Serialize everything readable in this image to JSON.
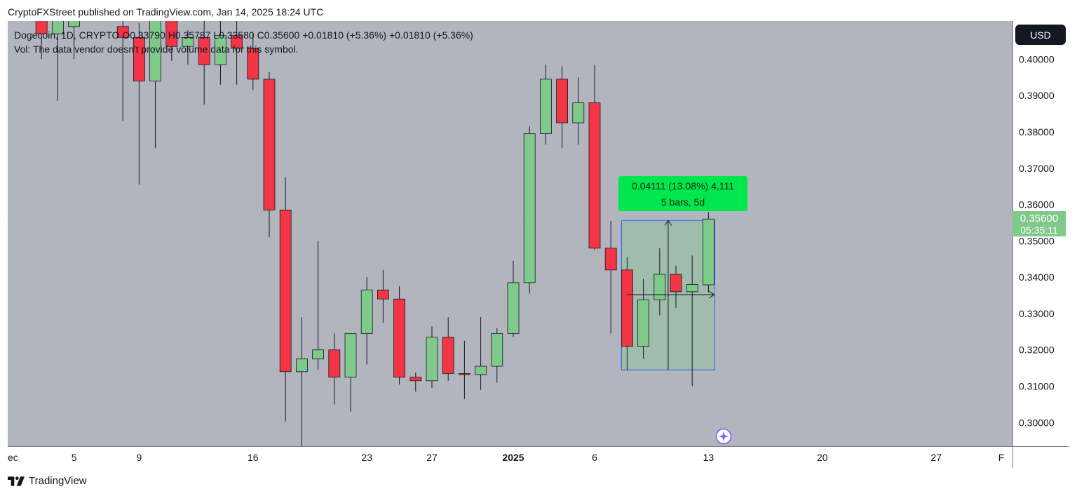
{
  "header": {
    "publisher_line": "CryptoFXStreet published on TradingView.com, Jan 14, 2025 18:24 UTC"
  },
  "legend": {
    "line1": "Dogecoin, 1D, CRYPTO  O0.33790  H0.35787  L0.33580  C0.35600  +0.01810 (+5.36%)  +0.01810 (+5.36%)",
    "line2": "Vol: The data vendor doesn't provide volume data for this symbol."
  },
  "currency_button": "USD",
  "measure": {
    "line1": "0.04111 (13.08%) 4,111",
    "line2": "5 bars, 5d"
  },
  "price_tag": {
    "price": "0.35600",
    "countdown": "05:35:11"
  },
  "footer": {
    "brand": "TradingView"
  },
  "colors": {
    "up": "#7fc98a",
    "down": "#f23645",
    "chart_bg": "#b2b5be",
    "measure_bg": "#00e64d",
    "measure_rect": "#2962ff"
  },
  "chart_data": {
    "type": "candlestick",
    "symbol": "Dogecoin",
    "interval": "1D",
    "exchange": "CRYPTO",
    "ylim": [
      0.2935,
      0.4105
    ],
    "yticks": [
      "0.40000",
      "0.39000",
      "0.38000",
      "0.37000",
      "0.36000",
      "0.35000",
      "0.34000",
      "0.33000",
      "0.32000",
      "0.31000",
      "0.30000"
    ],
    "xticks": [
      {
        "label": "ec",
        "day": -1
      },
      {
        "label": "5",
        "day": 5
      },
      {
        "label": "9",
        "day": 9
      },
      {
        "label": "16",
        "day": 16
      },
      {
        "label": "23",
        "day": 23
      },
      {
        "label": "27",
        "day": 27
      },
      {
        "label": "2025",
        "day": 32
      },
      {
        "label": "6",
        "day": 37
      },
      {
        "label": "13",
        "day": 44
      },
      {
        "label": "20",
        "day": 51
      },
      {
        "label": "27",
        "day": 58
      },
      {
        "label": "F",
        "day": 62
      }
    ],
    "last_price": 0.356,
    "candles": [
      {
        "day": 3,
        "o": 0.4135,
        "h": 0.416,
        "l": 0.4,
        "c": 0.407
      },
      {
        "day": 4,
        "o": 0.407,
        "h": 0.416,
        "l": 0.3885,
        "c": 0.411
      },
      {
        "day": 5,
        "o": 0.409,
        "h": 0.414,
        "l": 0.4,
        "c": 0.413
      },
      {
        "day": 8,
        "o": 0.409,
        "h": 0.412,
        "l": 0.383,
        "c": 0.406
      },
      {
        "day": 9,
        "o": 0.406,
        "h": 0.41,
        "l": 0.3655,
        "c": 0.394
      },
      {
        "day": 10,
        "o": 0.394,
        "h": 0.418,
        "l": 0.3755,
        "c": 0.4125
      },
      {
        "day": 11,
        "o": 0.411,
        "h": 0.418,
        "l": 0.3995,
        "c": 0.4035
      },
      {
        "day": 12,
        "o": 0.4035,
        "h": 0.408,
        "l": 0.3985,
        "c": 0.406
      },
      {
        "day": 13,
        "o": 0.406,
        "h": 0.411,
        "l": 0.3875,
        "c": 0.3985
      },
      {
        "day": 14,
        "o": 0.3985,
        "h": 0.412,
        "l": 0.393,
        "c": 0.4065
      },
      {
        "day": 15,
        "o": 0.4065,
        "h": 0.411,
        "l": 0.393,
        "c": 0.403
      },
      {
        "day": 16,
        "o": 0.403,
        "h": 0.407,
        "l": 0.3915,
        "c": 0.3945
      },
      {
        "day": 17,
        "o": 0.3945,
        "h": 0.3965,
        "l": 0.351,
        "c": 0.3585
      },
      {
        "day": 18,
        "o": 0.3585,
        "h": 0.3675,
        "l": 0.3003,
        "c": 0.314
      },
      {
        "day": 19,
        "o": 0.314,
        "h": 0.329,
        "l": 0.2935,
        "c": 0.3175
      },
      {
        "day": 20,
        "o": 0.3175,
        "h": 0.35,
        "l": 0.3145,
        "c": 0.32
      },
      {
        "day": 21,
        "o": 0.32,
        "h": 0.3245,
        "l": 0.305,
        "c": 0.3125
      },
      {
        "day": 22,
        "o": 0.3125,
        "h": 0.3245,
        "l": 0.303,
        "c": 0.3245
      },
      {
        "day": 23,
        "o": 0.3245,
        "h": 0.34,
        "l": 0.316,
        "c": 0.3365
      },
      {
        "day": 24,
        "o": 0.3365,
        "h": 0.342,
        "l": 0.3275,
        "c": 0.334
      },
      {
        "day": 25,
        "o": 0.334,
        "h": 0.3375,
        "l": 0.3105,
        "c": 0.3125
      },
      {
        "day": 26,
        "o": 0.3125,
        "h": 0.3138,
        "l": 0.3085,
        "c": 0.3115
      },
      {
        "day": 27,
        "o": 0.3115,
        "h": 0.3265,
        "l": 0.3095,
        "c": 0.3235
      },
      {
        "day": 28,
        "o": 0.3235,
        "h": 0.329,
        "l": 0.3115,
        "c": 0.3135
      },
      {
        "day": 29,
        "o": 0.3135,
        "h": 0.3225,
        "l": 0.3065,
        "c": 0.3132
      },
      {
        "day": 30,
        "o": 0.3132,
        "h": 0.329,
        "l": 0.309,
        "c": 0.3155
      },
      {
        "day": 31,
        "o": 0.3155,
        "h": 0.326,
        "l": 0.311,
        "c": 0.3245
      },
      {
        "day": 32,
        "o": 0.3245,
        "h": 0.3445,
        "l": 0.3235,
        "c": 0.3385
      },
      {
        "day": 33,
        "o": 0.3385,
        "h": 0.3815,
        "l": 0.3355,
        "c": 0.3795
      },
      {
        "day": 34,
        "o": 0.3795,
        "h": 0.3985,
        "l": 0.3765,
        "c": 0.3945
      },
      {
        "day": 35,
        "o": 0.3945,
        "h": 0.398,
        "l": 0.3755,
        "c": 0.3825
      },
      {
        "day": 36,
        "o": 0.3825,
        "h": 0.395,
        "l": 0.3765,
        "c": 0.388
      },
      {
        "day": 37,
        "o": 0.388,
        "h": 0.3985,
        "l": 0.3475,
        "c": 0.348
      },
      {
        "day": 38,
        "o": 0.348,
        "h": 0.3555,
        "l": 0.3245,
        "c": 0.342
      },
      {
        "day": 39,
        "o": 0.342,
        "h": 0.3455,
        "l": 0.3145,
        "c": 0.321
      },
      {
        "day": 40,
        "o": 0.321,
        "h": 0.3395,
        "l": 0.3175,
        "c": 0.3338
      },
      {
        "day": 41,
        "o": 0.3338,
        "h": 0.348,
        "l": 0.3295,
        "c": 0.3408
      },
      {
        "day": 42,
        "o": 0.3408,
        "h": 0.3432,
        "l": 0.3315,
        "c": 0.336
      },
      {
        "day": 43,
        "o": 0.336,
        "h": 0.346,
        "l": 0.31,
        "c": 0.338
      },
      {
        "day": 44,
        "o": 0.3379,
        "h": 0.3579,
        "l": 0.3358,
        "c": 0.356
      }
    ],
    "measure_range": {
      "from_day": 39,
      "to_day": 44,
      "low": 0.3145,
      "high": 0.3556
    }
  }
}
